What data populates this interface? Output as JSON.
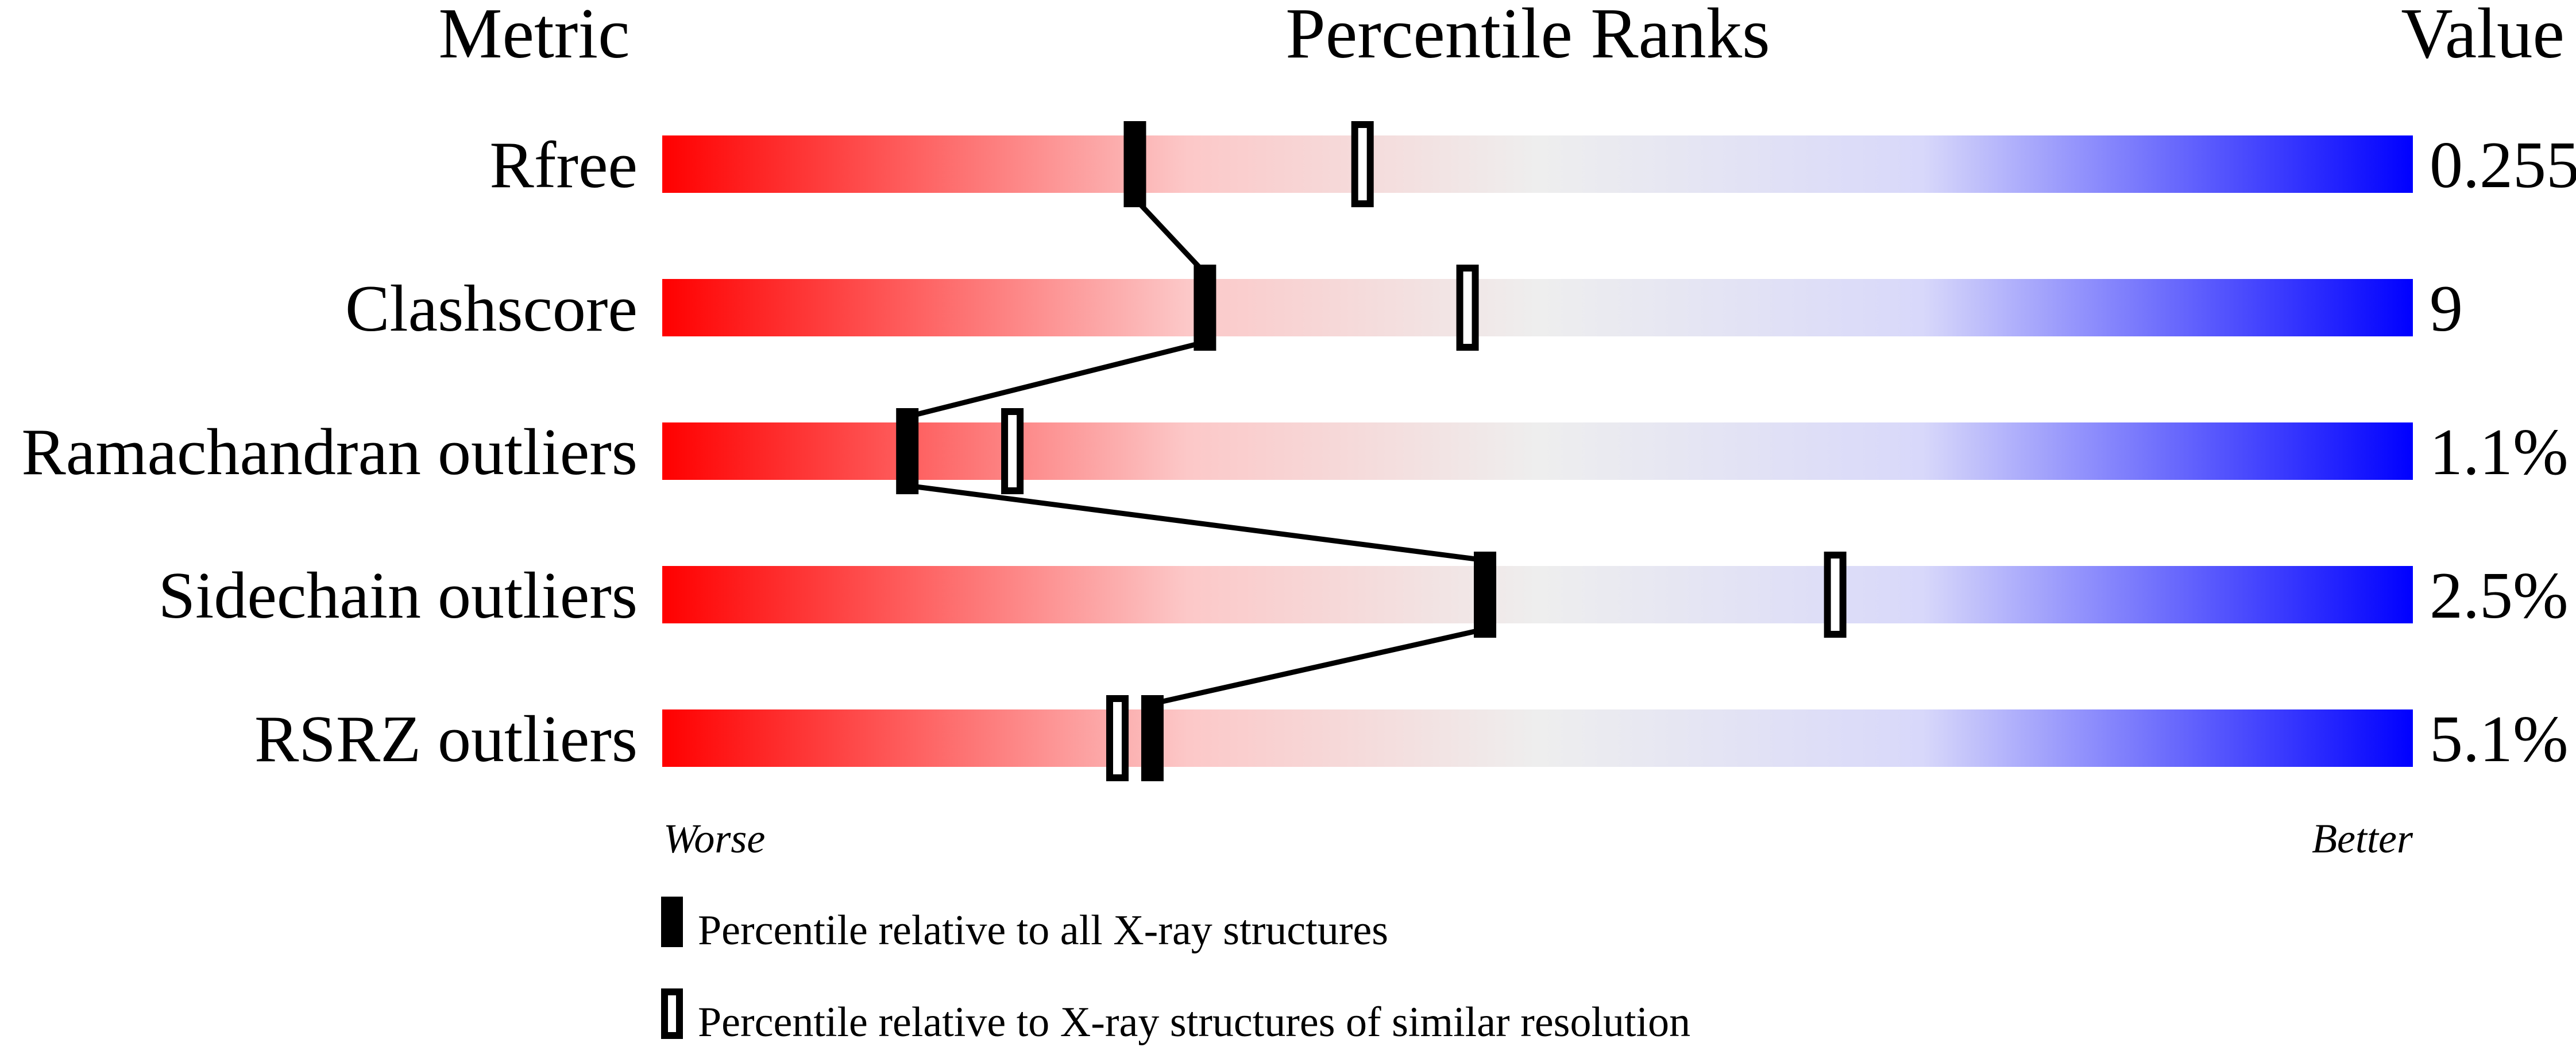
{
  "chart_data": {
    "type": "percentile-slider",
    "headers": {
      "metric": "Metric",
      "ranks": "Percentile Ranks",
      "value": "Value"
    },
    "axis": {
      "left": "Worse",
      "right": "Better",
      "range": [
        0,
        100
      ]
    },
    "gradient": [
      "#ff0000",
      "#fcc8c8",
      "#eeeeee",
      "#d8d8fa",
      "#0000ff"
    ],
    "rows": [
      {
        "metric": "Rfree",
        "value": "0.255",
        "all_percentile": 27,
        "similar_percentile": 40
      },
      {
        "metric": "Clashscore",
        "value": "9",
        "all_percentile": 31,
        "similar_percentile": 46
      },
      {
        "metric": "Ramachandran outliers",
        "value": "1.1%",
        "all_percentile": 14,
        "similar_percentile": 20
      },
      {
        "metric": "Sidechain outliers",
        "value": "2.5%",
        "all_percentile": 47,
        "similar_percentile": 67
      },
      {
        "metric": "RSRZ outliers",
        "value": "5.1%",
        "all_percentile": 28,
        "similar_percentile": 26
      }
    ],
    "legend": {
      "all": "Percentile relative to all X-ray structures",
      "similar": "Percentile relative to X-ray structures of similar resolution"
    }
  }
}
